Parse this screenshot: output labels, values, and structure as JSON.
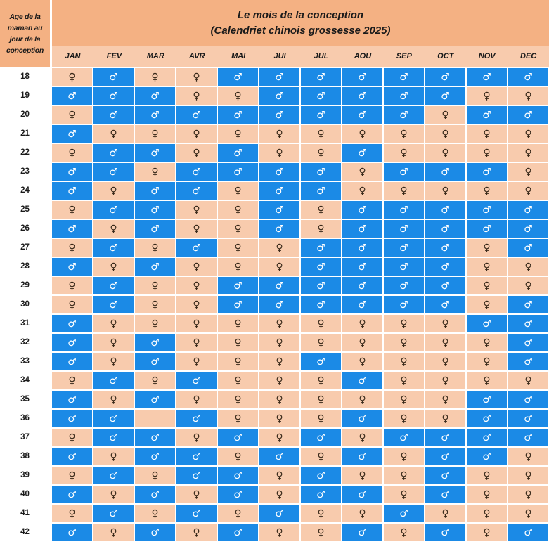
{
  "corner_label": "Age de la\nmaman au\njour de la\nconception",
  "title_line1": "Le mois de la conception",
  "title_line2": "(Calendriet chinois grossesse 2025)",
  "months": [
    "JAN",
    "FEV",
    "MAR",
    "AVR",
    "MAI",
    "JUI",
    "JUL",
    "AOU",
    "SEP",
    "OCT",
    "NOV",
    "DEC"
  ],
  "symbols": {
    "F": "♀",
    "M": "♂",
    "E": ""
  },
  "icons": {
    "F": "female-icon",
    "M": "male-icon"
  },
  "colors": {
    "header": "#f4b183",
    "female_cell": "#f8cbad",
    "male_cell": "#1b8ae6"
  },
  "rows": [
    {
      "age": "18",
      "cells": [
        "F",
        "M",
        "F",
        "F",
        "M",
        "M",
        "M",
        "M",
        "M",
        "M",
        "M",
        "M"
      ]
    },
    {
      "age": "19",
      "cells": [
        "M",
        "M",
        "M",
        "F",
        "F",
        "M",
        "M",
        "M",
        "M",
        "M",
        "F",
        "F"
      ]
    },
    {
      "age": "20",
      "cells": [
        "F",
        "M",
        "M",
        "M",
        "M",
        "M",
        "M",
        "M",
        "M",
        "F",
        "M",
        "M"
      ]
    },
    {
      "age": "21",
      "cells": [
        "M",
        "F",
        "F",
        "F",
        "F",
        "F",
        "F",
        "F",
        "F",
        "F",
        "F",
        "F"
      ]
    },
    {
      "age": "22",
      "cells": [
        "F",
        "M",
        "M",
        "F",
        "M",
        "F",
        "F",
        "M",
        "F",
        "F",
        "F",
        "F"
      ]
    },
    {
      "age": "23",
      "cells": [
        "M",
        "M",
        "F",
        "M",
        "M",
        "M",
        "M",
        "F",
        "M",
        "M",
        "M",
        "F"
      ]
    },
    {
      "age": "24",
      "cells": [
        "M",
        "F",
        "M",
        "M",
        "F",
        "M",
        "M",
        "F",
        "F",
        "F",
        "F",
        "F"
      ]
    },
    {
      "age": "25",
      "cells": [
        "F",
        "M",
        "M",
        "F",
        "F",
        "M",
        "F",
        "M",
        "M",
        "M",
        "M",
        "M"
      ]
    },
    {
      "age": "26",
      "cells": [
        "M",
        "F",
        "M",
        "F",
        "F",
        "M",
        "F",
        "M",
        "M",
        "M",
        "M",
        "M"
      ]
    },
    {
      "age": "27",
      "cells": [
        "F",
        "M",
        "F",
        "M",
        "F",
        "F",
        "M",
        "M",
        "M",
        "M",
        "F",
        "M"
      ]
    },
    {
      "age": "28",
      "cells": [
        "M",
        "F",
        "M",
        "F",
        "F",
        "F",
        "M",
        "M",
        "M",
        "M",
        "F",
        "F"
      ]
    },
    {
      "age": "29",
      "cells": [
        "F",
        "M",
        "F",
        "F",
        "M",
        "M",
        "M",
        "M",
        "M",
        "M",
        "F",
        "F"
      ]
    },
    {
      "age": "30",
      "cells": [
        "F",
        "M",
        "F",
        "F",
        "M",
        "M",
        "M",
        "M",
        "M",
        "M",
        "F",
        "M"
      ]
    },
    {
      "age": "31",
      "cells": [
        "M",
        "F",
        "F",
        "F",
        "F",
        "F",
        "F",
        "F",
        "F",
        "F",
        "M",
        "M"
      ]
    },
    {
      "age": "32",
      "cells": [
        "M",
        "F",
        "M",
        "F",
        "F",
        "F",
        "F",
        "F",
        "F",
        "F",
        "F",
        "M"
      ]
    },
    {
      "age": "33",
      "cells": [
        "M",
        "F",
        "M",
        "F",
        "F",
        "F",
        "M",
        "F",
        "F",
        "F",
        "F",
        "M"
      ]
    },
    {
      "age": "34",
      "cells": [
        "F",
        "M",
        "F",
        "M",
        "F",
        "F",
        "F",
        "M",
        "F",
        "F",
        "F",
        "F"
      ]
    },
    {
      "age": "35",
      "cells": [
        "M",
        "F",
        "M",
        "F",
        "F",
        "F",
        "F",
        "F",
        "F",
        "F",
        "M",
        "M"
      ]
    },
    {
      "age": "36",
      "cells": [
        "M",
        "M",
        "E",
        "M",
        "F",
        "F",
        "F",
        "M",
        "F",
        "F",
        "M",
        "M"
      ]
    },
    {
      "age": "37",
      "cells": [
        "F",
        "M",
        "M",
        "F",
        "M",
        "F",
        "M",
        "F",
        "M",
        "M",
        "M",
        "M"
      ]
    },
    {
      "age": "38",
      "cells": [
        "M",
        "F",
        "M",
        "M",
        "F",
        "M",
        "F",
        "M",
        "F",
        "M",
        "M",
        "F"
      ]
    },
    {
      "age": "39",
      "cells": [
        "F",
        "M",
        "F",
        "M",
        "M",
        "F",
        "M",
        "F",
        "F",
        "M",
        "F",
        "F"
      ]
    },
    {
      "age": "40",
      "cells": [
        "M",
        "F",
        "M",
        "F",
        "M",
        "F",
        "M",
        "M",
        "F",
        "M",
        "F",
        "F"
      ]
    },
    {
      "age": "41",
      "cells": [
        "F",
        "M",
        "F",
        "M",
        "F",
        "M",
        "F",
        "F",
        "M",
        "F",
        "F",
        "F"
      ]
    },
    {
      "age": "42",
      "cells": [
        "M",
        "F",
        "M",
        "F",
        "M",
        "F",
        "F",
        "M",
        "F",
        "M",
        "F",
        "M"
      ]
    }
  ]
}
